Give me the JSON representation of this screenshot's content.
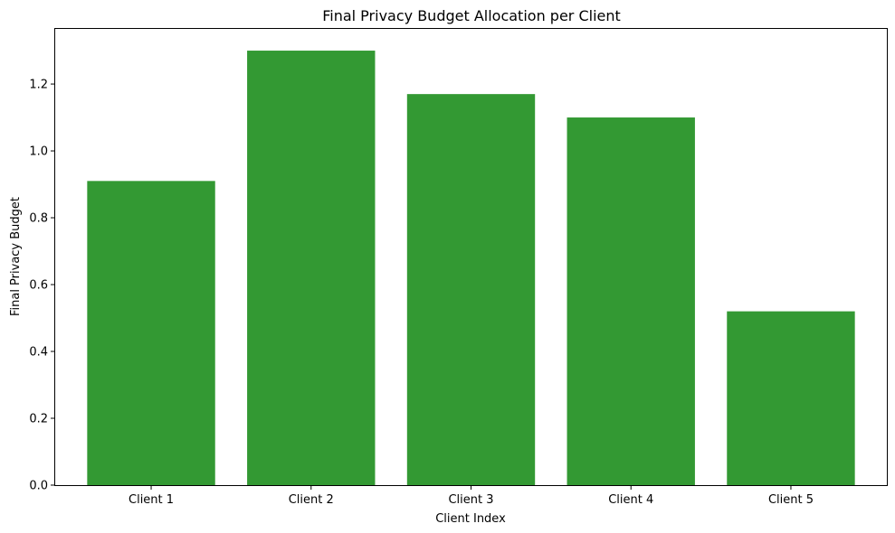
{
  "chart_data": {
    "type": "bar",
    "title": "Final Privacy Budget Allocation per Client",
    "xlabel": "Client Index",
    "ylabel": "Final Privacy Budget",
    "categories": [
      "Client 1",
      "Client 2",
      "Client 3",
      "Client 4",
      "Client 5"
    ],
    "values": [
      0.91,
      1.3,
      1.17,
      1.1,
      0.52
    ],
    "ylim": [
      0,
      1.365
    ],
    "yticks": [
      "0.0",
      "0.2",
      "0.4",
      "0.6",
      "0.8",
      "1.0",
      "1.2"
    ],
    "bar_color": "#339933",
    "grid": false,
    "legend": "none"
  }
}
